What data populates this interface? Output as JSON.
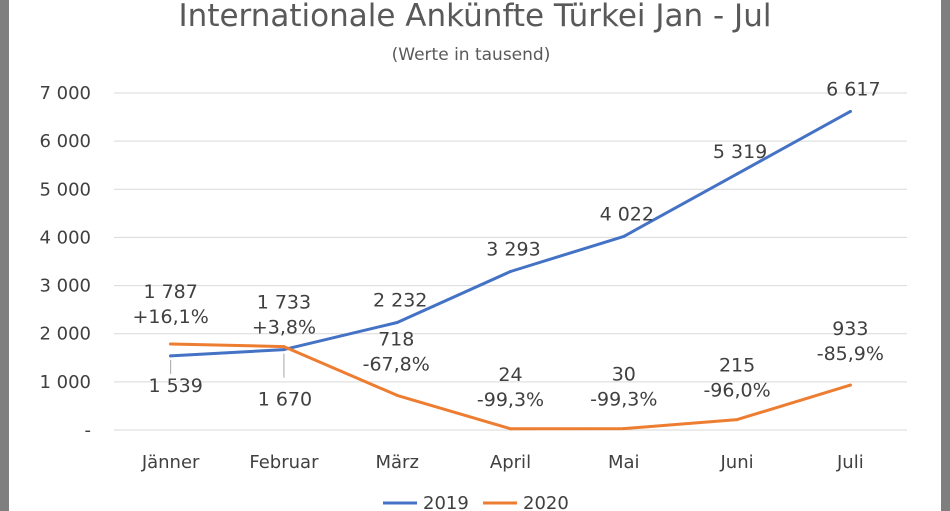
{
  "chart_data": {
    "type": "line",
    "title": "Internationale Ankünfte Türkei Jan - Jul",
    "subtitle": "(Werte in tausend)",
    "categories": [
      "Jänner",
      "Februar",
      "März",
      "April",
      "Mai",
      "Juni",
      "Juli"
    ],
    "ylim": [
      0,
      7000
    ],
    "yticks": [
      0,
      1000,
      2000,
      3000,
      4000,
      5000,
      6000,
      7000
    ],
    "ytick_labels": [
      "-",
      "1 000",
      "2 000",
      "3 000",
      "4 000",
      "5 000",
      "6 000",
      "7 000"
    ],
    "grid": true,
    "legend_position": "bottom",
    "series": [
      {
        "name": "2019",
        "color": "#4472c4",
        "values": [
          1539,
          1670,
          2232,
          3293,
          4022,
          5319,
          6617
        ],
        "labels": [
          "1 539",
          "1 670",
          "2 232",
          "3 293",
          "4 022",
          "5 319",
          "6 617"
        ]
      },
      {
        "name": "2020",
        "color": "#ed7d31",
        "values": [
          1787,
          1733,
          718,
          24,
          30,
          215,
          933
        ],
        "labels": [
          "1 787",
          "1 733",
          "718",
          "24",
          "30",
          "215",
          "933"
        ],
        "changes": [
          "+16,1%",
          "+3,8%",
          "-67,8%",
          "-99,3%",
          "-99,3%",
          "-96,0%",
          "-85,9%"
        ]
      }
    ]
  }
}
